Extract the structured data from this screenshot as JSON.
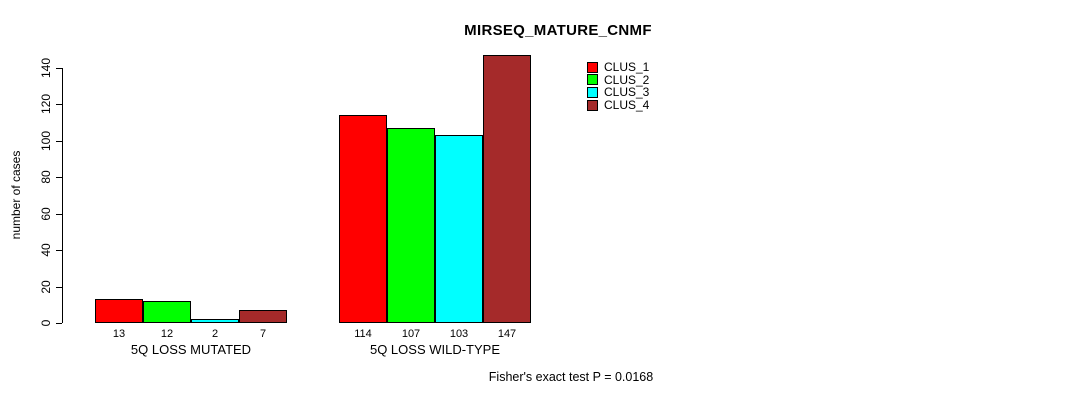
{
  "title": "MIRSEQ_MATURE_CNMF",
  "ylabel": "number of cases",
  "footer": "Fisher's exact test P = 0.0168",
  "chart_data": {
    "type": "bar",
    "categories": [
      "5Q LOSS MUTATED",
      "5Q LOSS WILD-TYPE"
    ],
    "series": [
      {
        "name": "CLUS_1",
        "color": "#FF0000",
        "values": [
          13,
          114
        ]
      },
      {
        "name": "CLUS_2",
        "color": "#00FF00",
        "values": [
          12,
          107
        ]
      },
      {
        "name": "CLUS_3",
        "color": "#00FFFF",
        "values": [
          2,
          103
        ]
      },
      {
        "name": "CLUS_4",
        "color": "#A52A2A",
        "values": [
          7,
          147
        ]
      }
    ],
    "ylim": [
      0,
      140
    ],
    "yticks": [
      0,
      20,
      40,
      60,
      80,
      100,
      120,
      140
    ],
    "bar_value_labels": true,
    "grid": false,
    "legend_position": "top-right"
  }
}
